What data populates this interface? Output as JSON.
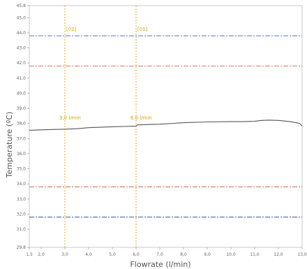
{
  "chart_data": {
    "type": "line",
    "title": "",
    "xlabel": "Flowrate (l/min)",
    "ylabel": "Temperature (ºC)",
    "xlim": [
      1.5,
      13.0
    ],
    "ylim": [
      29.8,
      45.8
    ],
    "x_tick_labels": [
      "1,5",
      "2,0",
      "3,0",
      "4,0",
      "5,0",
      "6,0",
      "7,0",
      "8,0",
      "9,0",
      "10,0",
      "11,0",
      "12,0",
      "13,0"
    ],
    "x_tick_values": [
      1.5,
      2.0,
      3.0,
      4.0,
      5.0,
      6.0,
      7.0,
      8.0,
      9.0,
      10.0,
      11.0,
      12.0,
      13.0
    ],
    "y_tick_labels": [
      "29,8",
      "31,0",
      "32,0",
      "33,0",
      "34,0",
      "35,0",
      "36,0",
      "37,0",
      "38,0",
      "39,0",
      "40,0",
      "41,0",
      "42,0",
      "43,0",
      "44,0",
      "45,0",
      "45,8"
    ],
    "y_tick_values": [
      29.8,
      31.0,
      32.0,
      33.0,
      34.0,
      35.0,
      36.0,
      37.0,
      38.0,
      39.0,
      40.0,
      41.0,
      42.0,
      43.0,
      44.0,
      45.0,
      45.8
    ],
    "grid": false,
    "series": [
      {
        "color": "#555555",
        "x": [
          1.5,
          2.0,
          2.5,
          3.0,
          3.5,
          4.0,
          4.5,
          5.0,
          5.5,
          6.0,
          6.05,
          6.5,
          7.0,
          8.0,
          9.0,
          10.0,
          10.5,
          11.0,
          11.3,
          11.6,
          12.0,
          12.5,
          12.9,
          13.0
        ],
        "y": [
          37.55,
          37.58,
          37.6,
          37.62,
          37.65,
          37.72,
          37.75,
          37.78,
          37.8,
          37.82,
          37.9,
          37.93,
          37.95,
          38.05,
          38.1,
          38.12,
          38.12,
          38.14,
          38.2,
          38.22,
          38.2,
          38.12,
          38.0,
          37.82
        ]
      }
    ],
    "reference_lines": [
      {
        "y": 43.8,
        "color": "#4a7fd0"
      },
      {
        "y": 41.8,
        "color": "#e07a55"
      },
      {
        "y": 33.8,
        "color": "#d06a45"
      },
      {
        "y": 31.8,
        "color": "#3a4fa0"
      }
    ],
    "cursors": [
      {
        "x": 3.0,
        "label": "[02]",
        "value_label": "3,0 l/min",
        "color": "#e0b000"
      },
      {
        "x": 6.0,
        "label": "[01]",
        "value_label": "6,0 l/min",
        "color": "#e0b000"
      }
    ]
  }
}
